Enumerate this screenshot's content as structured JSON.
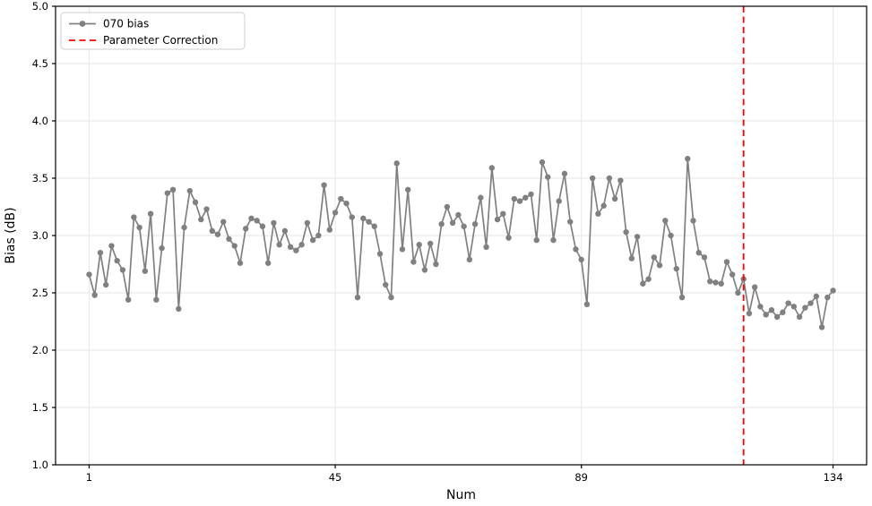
{
  "chart_data": {
    "type": "line",
    "title": "",
    "xlabel": "Num",
    "ylabel": "Bias (dB)",
    "series": [
      {
        "name": "070 bias",
        "color": "#808080",
        "x_start": 1,
        "values": [
          2.66,
          2.48,
          2.85,
          2.57,
          2.91,
          2.78,
          2.7,
          2.44,
          3.16,
          3.07,
          2.69,
          3.19,
          2.44,
          2.89,
          3.37,
          3.4,
          2.36,
          3.07,
          3.39,
          3.29,
          3.14,
          3.23,
          3.04,
          3.01,
          3.12,
          2.97,
          2.91,
          2.76,
          3.06,
          3.15,
          3.13,
          3.08,
          2.76,
          3.11,
          2.92,
          3.04,
          2.9,
          2.87,
          2.92,
          3.11,
          2.96,
          3.0,
          3.44,
          3.05,
          3.2,
          3.32,
          3.28,
          3.16,
          2.46,
          3.15,
          3.12,
          3.08,
          2.84,
          2.57,
          2.46,
          3.63,
          2.88,
          3.4,
          2.77,
          2.92,
          2.7,
          2.93,
          2.75,
          3.1,
          3.25,
          3.11,
          3.18,
          3.08,
          2.79,
          3.1,
          3.33,
          2.9,
          3.59,
          3.14,
          3.19,
          2.98,
          3.32,
          3.3,
          3.33,
          3.36,
          2.96,
          3.64,
          3.51,
          2.96,
          3.3,
          3.54,
          3.12,
          2.88,
          2.79,
          2.4,
          3.5,
          3.19,
          3.26,
          3.5,
          3.32,
          3.48,
          3.03,
          2.8,
          2.99,
          2.58,
          2.62,
          2.81,
          2.74,
          3.13,
          3.0,
          2.71,
          2.46,
          3.67,
          3.13,
          2.85,
          2.81,
          2.6,
          2.59,
          2.58,
          2.77,
          2.66,
          2.5,
          2.62,
          2.32,
          2.55,
          2.38,
          2.31,
          2.35,
          2.29,
          2.33,
          2.41,
          2.38,
          2.29,
          2.37,
          2.41,
          2.47,
          2.2,
          2.46,
          2.52
        ]
      }
    ],
    "annotations": [
      {
        "type": "vline",
        "x": 118,
        "label": "Parameter Correction",
        "color": "#ff0000",
        "linestyle": "dashed"
      }
    ],
    "xlim": [
      -5,
      140
    ],
    "ylim": [
      1.0,
      5.0
    ],
    "xticks": [
      1,
      45,
      89,
      134
    ],
    "xticklabels": [
      "1",
      "45",
      "89",
      "134"
    ],
    "yticks": [
      1.0,
      1.5,
      2.0,
      2.5,
      3.0,
      3.5,
      4.0,
      4.5,
      5.0
    ],
    "yticklabels": [
      "1.0",
      "1.5",
      "2.0",
      "2.5",
      "3.0",
      "3.5",
      "4.0",
      "4.5",
      "5.0"
    ],
    "grid": true,
    "grid_color": "#e6e6e6",
    "legend": {
      "position": "upper-left",
      "items": [
        {
          "label": "070 bias",
          "marker": "line-with-dot",
          "color": "#808080"
        },
        {
          "label": "Parameter Correction",
          "marker": "dashed-line",
          "color": "#ff0000"
        }
      ]
    }
  }
}
